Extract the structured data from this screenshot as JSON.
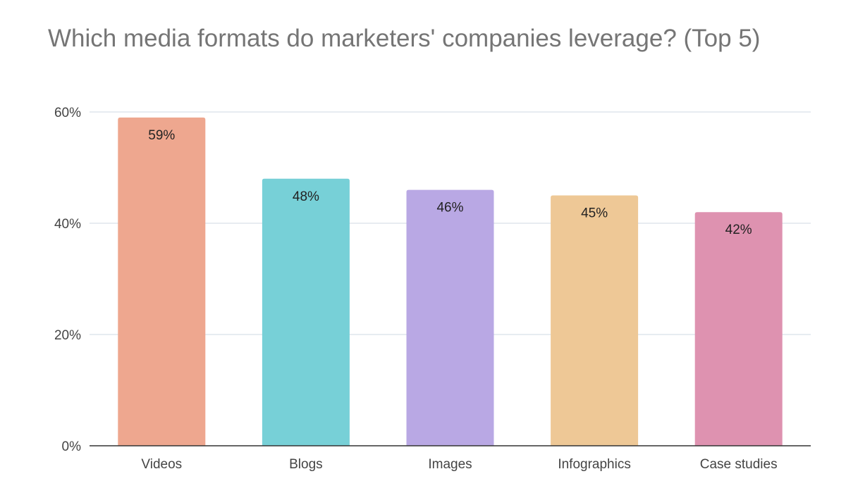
{
  "chart_data": {
    "type": "bar",
    "title": "Which media formats do marketers' companies leverage? (Top 5)",
    "categories": [
      "Videos",
      "Blogs",
      "Images",
      "Infographics",
      "Case studies"
    ],
    "values": [
      59,
      48,
      46,
      45,
      42
    ],
    "value_labels": [
      "59%",
      "48%",
      "46%",
      "45%",
      "42%"
    ],
    "bar_colors": [
      "#eea78f",
      "#77d0d7",
      "#b9a8e4",
      "#eec896",
      "#de92b0"
    ],
    "y_ticks": [
      0,
      20,
      40,
      60
    ],
    "y_tick_labels": [
      "0%",
      "20%",
      "40%",
      "60%"
    ],
    "ylim": [
      0,
      60
    ],
    "xlabel": "",
    "ylabel": "",
    "grid": true,
    "legend": "none"
  }
}
